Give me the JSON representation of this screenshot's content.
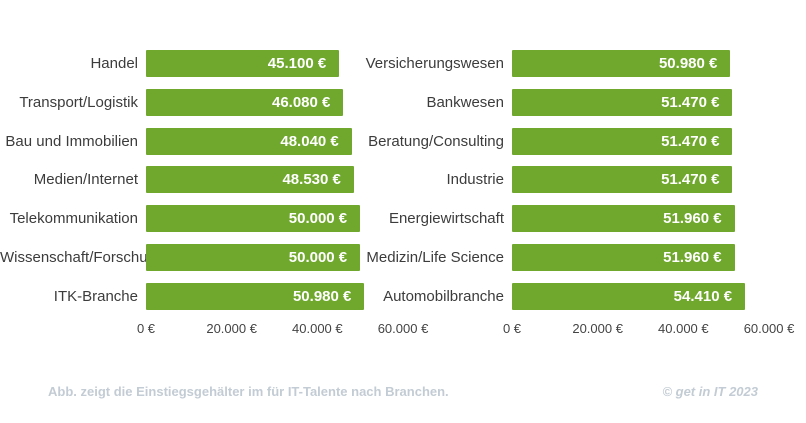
{
  "footer": {
    "caption": "Abb. zeigt die Einstiegsgehälter im für IT-Talente nach Branchen.",
    "credit": "© get in IT 2023"
  },
  "colors": {
    "page_bg": "#ffffff",
    "bar_green": "#6FA82D",
    "bar_value_text": "#ffffff",
    "category_text": "#3c3c3c",
    "axis_text": "#444444",
    "caption_text": "#c3ccd4"
  },
  "chart_data": {
    "type": "bar",
    "orientation": "horizontal",
    "title": "",
    "xlabel": "",
    "ylabel": "",
    "unit": "€",
    "xlim": [
      0,
      60000
    ],
    "x_tick_values": [
      0,
      20000,
      40000,
      60000
    ],
    "x_tick_labels": [
      "0 €",
      "20.000 €",
      "40.000 €",
      "60.000 €"
    ],
    "grid": false,
    "legend_position": "none",
    "panels": [
      {
        "categories": [
          "Handel",
          "Transport/Logistik",
          "Bau und Immobilien",
          "Medien/Internet",
          "Telekommunikation",
          "Wissenschaft/Forschung",
          "ITK-Branche"
        ],
        "values": [
          45100,
          46080,
          48040,
          48530,
          50000,
          50000,
          50980
        ],
        "value_labels": [
          "45.100 €",
          "46.080 €",
          "48.040 €",
          "48.530 €",
          "50.000 €",
          "50.000 €",
          "50.980 €"
        ]
      },
      {
        "categories": [
          "Versicherungswesen",
          "Bankwesen",
          "Beratung/Consulting",
          "Industrie",
          "Energiewirtschaft",
          "Medizin/Life Science",
          "Automobilbranche"
        ],
        "values": [
          50980,
          51470,
          51470,
          51470,
          51960,
          51960,
          54410
        ],
        "value_labels": [
          "50.980 €",
          "51.470 €",
          "51.470 €",
          "51.470 €",
          "51.960 €",
          "51.960 €",
          "54.410 €"
        ]
      }
    ]
  }
}
